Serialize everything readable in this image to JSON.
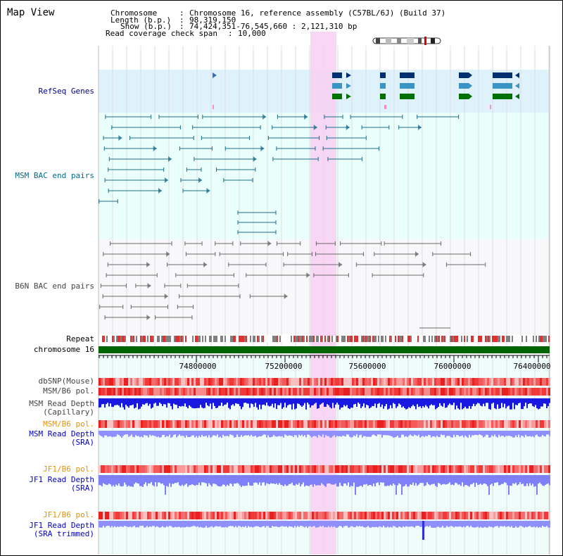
{
  "title": "Map View",
  "info": {
    "chromosome_key": "Chromosome",
    "chromosome_val": "Chromosome 16, reference assembly (C57BL/6J) (Build 37)",
    "length_key": "Length (b.p.)",
    "length_val": "98,319,150",
    "show_key": "Show (b.p.)",
    "show_val": "74,424,351-76,545,660 : 2,121,310 bp",
    "read_key": "Read coverage check span",
    "read_val": "10,000"
  },
  "tracks": {
    "refseq": "RefSeq Genes",
    "msm_bac": "MSM BAC end pairs",
    "b6n_bac": "B6N BAC end pairs",
    "repeat": "Repeat",
    "chromosome": "chromosome 16",
    "dbsnp": "dbSNP(Mouse)",
    "msm_b6_pol_1": "MSM/B6 pol.",
    "msm_depth_cap_1": "MSM Read Depth",
    "msm_depth_cap_2": "(Capillary)",
    "msm_b6_pol_2": "MSM/B6 pol.",
    "msm_depth_sra_1": "MSM Read Depth",
    "msm_depth_sra_2": "(SRA)",
    "jf1_b6_pol_1": "JF1/B6 pol.",
    "jf1_depth_sra_1": "JF1 Read Depth",
    "jf1_depth_sra_2": "(SRA)",
    "jf1_b6_pol_2": "JF1/B6 pol.",
    "jf1_depth_trim_1": "JF1 Read Depth",
    "jf1_depth_trim_2": "(SRA trimmed)"
  },
  "axis_ticks": [
    "74800000",
    "75200000",
    "75600000",
    "76000000",
    "76400000"
  ],
  "colors": {
    "refseq_bg": "#dff2fb",
    "bac_bg": "#eafffc",
    "highlight": "#f8d8f4",
    "chromosome_bar": "#006400",
    "snp_red": "#f03a3a",
    "depth_blue": "#1818e0",
    "depth_light": "#8f8fff"
  }
}
